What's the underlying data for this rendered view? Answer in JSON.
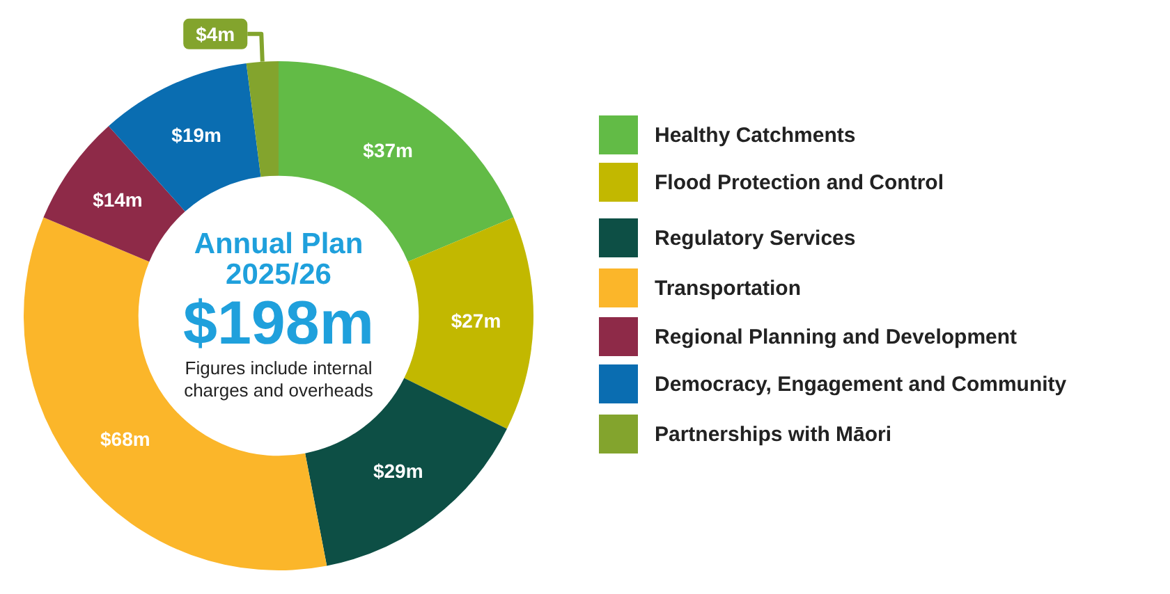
{
  "chart_data": {
    "type": "donut",
    "title": "Annual Plan 2025/26",
    "subtitle": "$198m",
    "annotations": [
      "Figures include internal charges and overheads"
    ],
    "categories": [
      "Healthy Catchments",
      "Flood Protection and Control",
      "Regulatory Services",
      "Transportation",
      "Regional Planning and Development",
      "Democracy, Engagement and Community",
      "Partnerships with Māori"
    ],
    "values": [
      37,
      27,
      29,
      68,
      14,
      19,
      4
    ],
    "colors": [
      "#62bb46",
      "#c2b800",
      "#0d4f45",
      "#fbb62a",
      "#8e2a48",
      "#0a6db1",
      "#83a42d"
    ],
    "value_labels": [
      "$37m",
      "$27m",
      "$29m",
      "$68m",
      "$14m",
      "$19m",
      "$4m"
    ],
    "legend": "right"
  }
}
